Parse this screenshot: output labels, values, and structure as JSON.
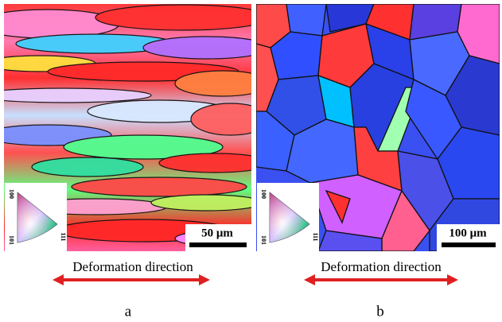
{
  "panels": [
    {
      "scale_bar": "50 μm",
      "legend": {
        "top": "100",
        "bottom": "101",
        "right": "111"
      },
      "caption": "Deformation direction",
      "label": "a"
    },
    {
      "scale_bar": "100 μm",
      "legend": {
        "top": "100",
        "bottom": "101",
        "right": "111"
      },
      "caption": "Deformation direction",
      "label": "b"
    }
  ]
}
